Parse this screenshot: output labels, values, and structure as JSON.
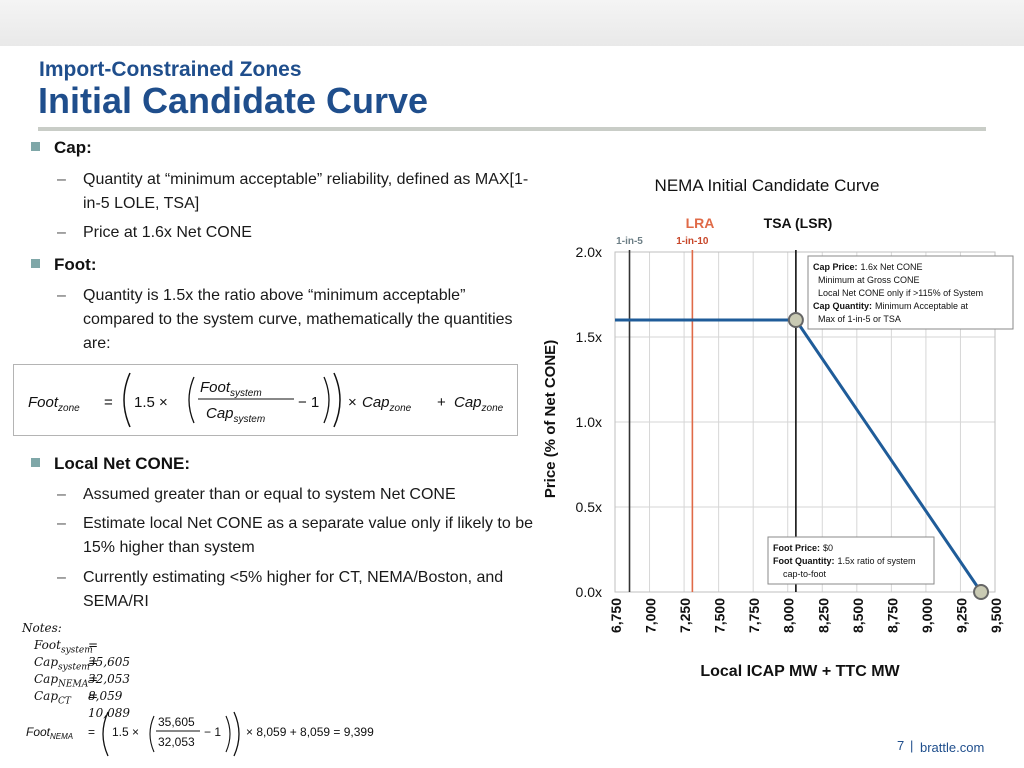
{
  "header": {
    "kicker": "Import-Constrained Zones",
    "title": "Initial Candidate Curve"
  },
  "bullets": {
    "cap": {
      "heading": "Cap:",
      "items": [
        "Quantity at “minimum acceptable” reliability, defined as MAX[1-in-5 LOLE, TSA]",
        "Price at 1.6x Net CONE"
      ]
    },
    "foot": {
      "heading": "Foot:",
      "items": [
        "Quantity is 1.5x the ratio above “minimum acceptable” compared to the system curve, mathematically the quantities are:"
      ]
    },
    "local": {
      "heading": "Local Net CONE:",
      "items": [
        "Assumed greater than or equal to system Net CONE",
        "Estimate local Net CONE as a separate value only if likely to be 15% higher than system",
        "Currently estimating <5% higher for CT, NEMA/Boston, and SEMA/RI"
      ]
    }
  },
  "formula": {
    "lhs_base": "Foot",
    "lhs_sub": "zone",
    "eq": "=",
    "factor": "1.5 ×",
    "num_base": "Foot",
    "num_sub": "system",
    "den_base": "Cap",
    "den_sub": "system",
    "minus_one": "− 1",
    "times": "×",
    "cap_base": "Cap",
    "cap_sub": "zone",
    "plus": "+",
    "cap2_base": "Cap",
    "cap2_sub": "zone"
  },
  "notes": {
    "heading": "Notes:",
    "rows": [
      {
        "base": "Foot",
        "sub": "system",
        "value": "= 35,605"
      },
      {
        "base": "Cap",
        "sub": "system",
        "value": "= 32,053"
      },
      {
        "base": "Cap",
        "sub": "NEMA",
        "value": "= 8,059"
      },
      {
        "base": "Cap",
        "sub": "CT",
        "value": "= 10,089"
      }
    ],
    "formula": {
      "lhs_base": "Foot",
      "lhs_sub": "NEMA",
      "eq": "=",
      "factor": "1.5 ×",
      "num": "35,605",
      "den": "32,053",
      "minus_one": "− 1",
      "tail": "× 8,059 + 8,059 = 9,399"
    }
  },
  "chart_data": {
    "type": "line",
    "title": "NEMA Initial Candidate Curve",
    "xlabel": "Local ICAP MW + TTC MW",
    "ylabel": "Price (% of Net CONE)",
    "xlim": [
      6750,
      9500
    ],
    "ylim": [
      0,
      2.0
    ],
    "x_ticks": [
      6750,
      7000,
      7250,
      7500,
      7750,
      8000,
      8250,
      8500,
      8750,
      9000,
      9250,
      9500
    ],
    "x_tick_labels": [
      "6,750",
      "7,000",
      "7,250",
      "7,500",
      "7,750",
      "8,000",
      "8,250",
      "8,500",
      "8,750",
      "9,000",
      "9,250",
      "9,500"
    ],
    "y_ticks": [
      0,
      0.5,
      1.0,
      1.5,
      2.0
    ],
    "y_tick_labels": [
      "0.0x",
      "0.5x",
      "1.0x",
      "1.5x",
      "2.0x"
    ],
    "grid": true,
    "series": [
      {
        "values": [
          [
            6750,
            1.6
          ],
          [
            8059,
            1.6
          ],
          [
            9399,
            0.0
          ]
        ],
        "color": "#1f5c99"
      }
    ],
    "markers": [
      {
        "x": 8059,
        "y": 1.6
      },
      {
        "x": 9399,
        "y": 0.0
      }
    ],
    "vertical_lines": [
      {
        "x": 6855,
        "label": "1-in-5",
        "color": "#333333",
        "label_color": "#6d7f86"
      },
      {
        "x": 7310,
        "label": "1-in-10",
        "color": "#e06a47",
        "label_color": "#c8472a"
      },
      {
        "x": 8059,
        "color": "#111111"
      }
    ],
    "group_labels": [
      {
        "text": "LRA",
        "color": "#e06a47"
      },
      {
        "text": "TSA (LSR)",
        "color": "#111111"
      }
    ],
    "annotations": {
      "cap_box": [
        {
          "label": "Cap Price:",
          "text": "1.6x Net CONE"
        },
        {
          "label": "",
          "text": "Minimum at Gross CONE"
        },
        {
          "label": "",
          "text": "Local Net CONE only if >115% of System"
        },
        {
          "label": "Cap Quantity:",
          "text": "Minimum Acceptable at"
        },
        {
          "label": "",
          "text": "Max of 1-in-5 or TSA"
        }
      ],
      "foot_box": [
        {
          "label": "Foot Price:",
          "text": "$0"
        },
        {
          "label": "Foot Quantity:",
          "text": "1.5x ratio of system"
        },
        {
          "label": "",
          "text": "cap-to-foot"
        }
      ]
    }
  },
  "footer": {
    "page": "7",
    "separator": "|",
    "site": "brattle.com"
  }
}
